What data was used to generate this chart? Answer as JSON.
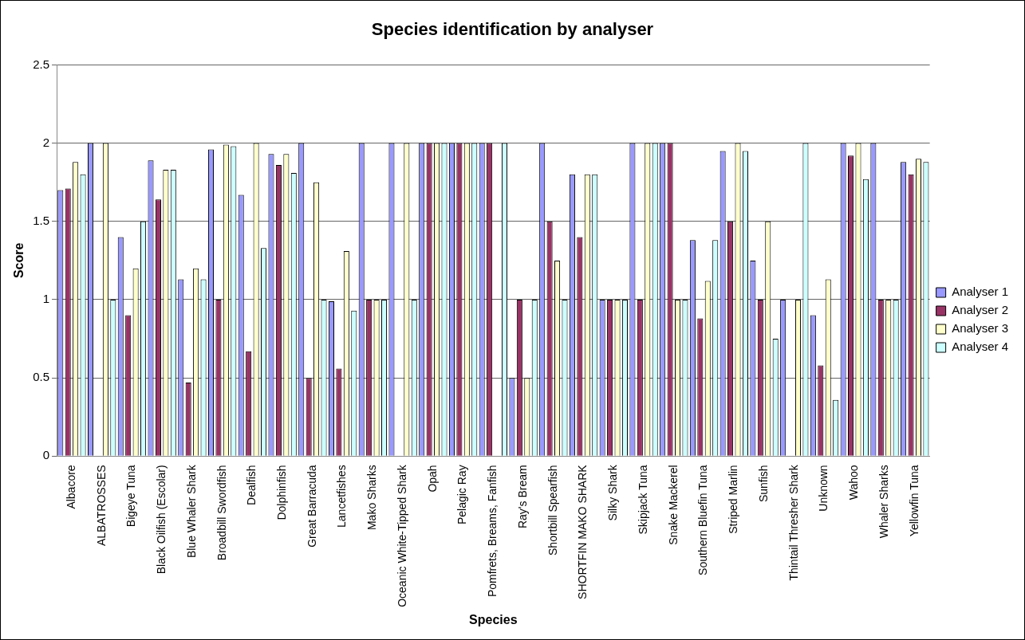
{
  "chart_data": {
    "type": "bar",
    "title": "Species identification by analyser",
    "xlabel": "Species",
    "ylabel": "Score",
    "categories": [
      "Albacore",
      "ALBATROSSES",
      "Bigeye Tuna",
      "Black Oilfish (Escolar)",
      "Blue Whaler Shark",
      "Broadbill Swordfish",
      "Dealfish",
      "Dolphinfish",
      "Great Barracuda",
      "Lancetfishes",
      "Mako Sharks",
      "Oceanic White-Tipped Shark",
      "Opah",
      "Pelagic Ray",
      "Pomfrets, Breams, Fanfish",
      "Ray's Bream",
      "Shortbill Spearfish",
      "SHORTFIN MAKO SHARK",
      "Silky Shark",
      "Skipjack Tuna",
      "Snake Mackerel",
      "Southern Bluefin Tuna",
      "Striped Marlin",
      "Sunfish",
      "Thintail Thresher Shark",
      "Unknown",
      "Wahoo",
      "Whaler Sharks",
      "Yellowfin Tuna"
    ],
    "series": [
      {
        "name": "Analyser 1",
        "color": "#9999ff",
        "values": [
          1.7,
          2,
          1.4,
          1.89,
          1.13,
          1.96,
          1.67,
          1.93,
          2,
          0.99,
          2,
          2,
          2,
          2,
          2,
          0.5,
          2,
          1.8,
          1,
          2,
          2,
          1.38,
          1.95,
          1.25,
          1,
          0.9,
          2,
          2,
          1.88
        ]
      },
      {
        "name": "Analyser 2",
        "color": "#993366",
        "values": [
          1.71,
          null,
          0.9,
          1.64,
          0.47,
          1,
          0.67,
          1.86,
          0.5,
          0.56,
          1,
          null,
          2,
          2,
          2,
          1,
          1.5,
          1.4,
          1,
          1,
          2,
          0.88,
          1.5,
          1,
          null,
          0.58,
          1.92,
          1,
          1.8
        ]
      },
      {
        "name": "Analyser 3",
        "color": "#ffffcc",
        "values": [
          1.88,
          2,
          1.2,
          1.83,
          1.2,
          1.99,
          2,
          1.93,
          1.75,
          1.31,
          1,
          2,
          2,
          2,
          null,
          0.5,
          1.25,
          1.8,
          1,
          2,
          1,
          1.12,
          2,
          1.5,
          1,
          1.13,
          2,
          1,
          1.9
        ]
      },
      {
        "name": "Analyser 4",
        "color": "#ccffff",
        "values": [
          1.8,
          1,
          1.5,
          1.83,
          1.13,
          1.98,
          1.33,
          1.81,
          1,
          0.93,
          1,
          1,
          2,
          2,
          2,
          1,
          1,
          1.8,
          1,
          2,
          1,
          1.38,
          1.95,
          0.75,
          2,
          0.36,
          1.77,
          1,
          1.88
        ]
      }
    ],
    "ylim": [
      0,
      2.5
    ],
    "yticks": [
      0,
      0.5,
      1,
      1.5,
      2,
      2.5
    ],
    "grid": "y",
    "legend": "right"
  }
}
